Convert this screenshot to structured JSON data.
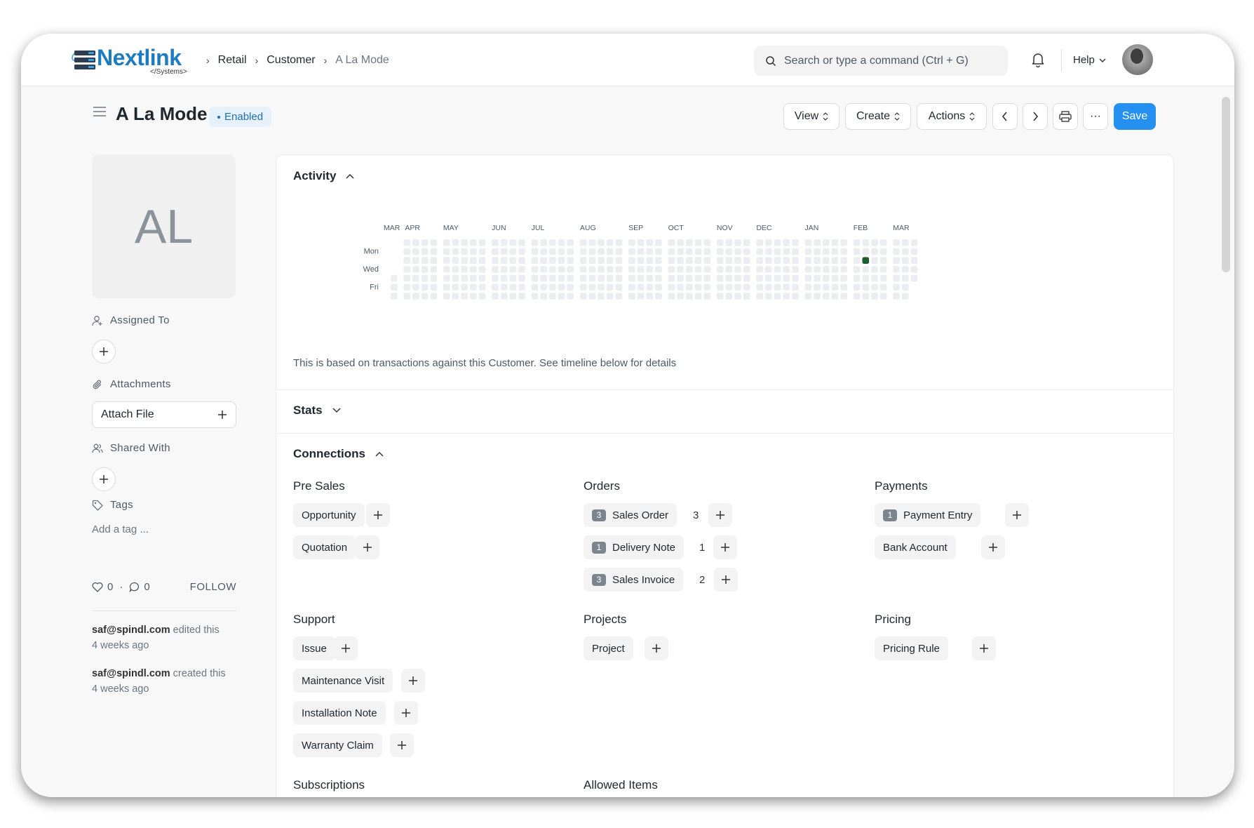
{
  "navbar": {
    "brand": "Nextlink",
    "brand_sub": "</Systems>",
    "breadcrumbs": [
      "Retail",
      "Customer",
      "A La Mode"
    ],
    "search_placeholder": "Search or type a command (Ctrl + G)",
    "help": "Help"
  },
  "page": {
    "title": "A La Mode",
    "status": "Enabled",
    "buttons": {
      "view": "View",
      "create": "Create",
      "actions": "Actions",
      "more": "···",
      "save": "Save"
    }
  },
  "sidebar": {
    "initials": "AL",
    "assigned_to": "Assigned To",
    "attachments": "Attachments",
    "attach_file": "Attach File",
    "shared_with": "Shared With",
    "tags": "Tags",
    "add_tag": "Add a tag ...",
    "likes": "0",
    "comments": "0",
    "follow": "FOLLOW",
    "timeline": [
      {
        "user": "saf@spindl.com",
        "action": "edited this",
        "when": "4 weeks ago"
      },
      {
        "user": "saf@spindl.com",
        "action": "created this",
        "when": "4 weeks ago"
      }
    ]
  },
  "activity": {
    "title": "Activity",
    "months": [
      "MAR",
      "APR",
      "MAY",
      "JUN",
      "JUL",
      "AUG",
      "SEP",
      "OCT",
      "NOV",
      "DEC",
      "JAN",
      "FEB",
      "MAR"
    ],
    "days": [
      "Mon",
      "Wed",
      "Fri"
    ],
    "highlight_color": "#1e5e2e",
    "empty_color": "#ebedf0",
    "note": "This is based on transactions against this Customer. See timeline below for details"
  },
  "stats": {
    "title": "Stats"
  },
  "connections": {
    "title": "Connections",
    "groups": {
      "pre_sales": {
        "title": "Pre Sales",
        "items": [
          {
            "label": "Opportunity"
          },
          {
            "label": "Quotation"
          }
        ]
      },
      "orders": {
        "title": "Orders",
        "items": [
          {
            "label": "Sales Order",
            "badge": "3",
            "count": "3"
          },
          {
            "label": "Delivery Note",
            "badge": "1",
            "count": "1"
          },
          {
            "label": "Sales Invoice",
            "badge": "3",
            "count": "2"
          }
        ]
      },
      "payments": {
        "title": "Payments",
        "items": [
          {
            "label": "Payment Entry",
            "badge": "1"
          },
          {
            "label": "Bank Account"
          }
        ]
      },
      "support": {
        "title": "Support",
        "items": [
          {
            "label": "Issue"
          },
          {
            "label": "Maintenance Visit"
          },
          {
            "label": "Installation Note"
          },
          {
            "label": "Warranty Claim"
          }
        ]
      },
      "projects": {
        "title": "Projects",
        "items": [
          {
            "label": "Project"
          }
        ]
      },
      "pricing": {
        "title": "Pricing",
        "items": [
          {
            "label": "Pricing Rule"
          }
        ]
      },
      "subscriptions": {
        "title": "Subscriptions"
      },
      "allowed_items": {
        "title": "Allowed Items"
      }
    }
  }
}
